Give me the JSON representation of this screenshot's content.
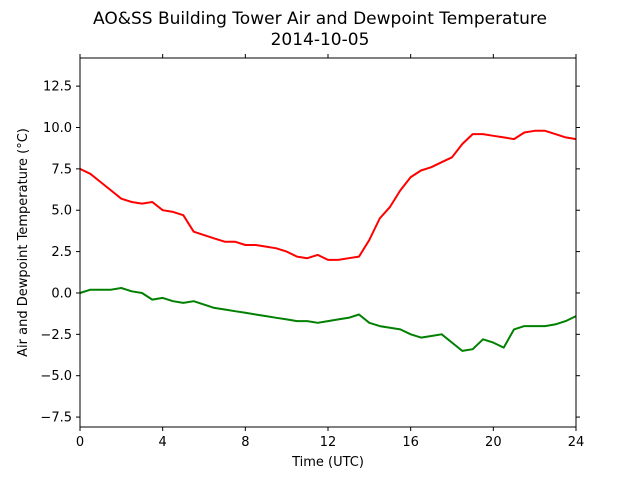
{
  "chart_data": {
    "type": "line",
    "title": "AO&SS Building Tower Air and Dewpoint Temperature",
    "subtitle": "2014-10-05",
    "xlabel": "Time (UTC)",
    "ylabel": "Air and Dewpoint Temperature (°C)",
    "xlim": [
      0,
      24
    ],
    "ylim": [
      -8.1,
      14.2
    ],
    "xticks": [
      0,
      4,
      8,
      12,
      16,
      20,
      24
    ],
    "xtick_labels": [
      "0",
      "4",
      "8",
      "12",
      "16",
      "20",
      "24"
    ],
    "yticks": [
      -7.5,
      -5.0,
      -2.5,
      0.0,
      2.5,
      5.0,
      7.5,
      10.0,
      12.5
    ],
    "ytick_labels": [
      "−7.5",
      "−5.0",
      "−2.5",
      "0.0",
      "2.5",
      "5.0",
      "7.5",
      "10.0",
      "12.5"
    ],
    "grid": false,
    "series": [
      {
        "color": "#ff0000",
        "x": [
          0,
          0.5,
          1,
          1.5,
          2,
          2.5,
          3,
          3.5,
          4,
          4.5,
          5,
          5.5,
          6,
          6.5,
          7,
          7.5,
          8,
          8.5,
          9,
          9.5,
          10,
          10.5,
          11,
          11.5,
          12,
          12.5,
          13,
          13.5,
          14,
          14.5,
          15,
          15.5,
          16,
          16.5,
          17,
          17.5,
          18,
          18.5,
          19,
          19.5,
          20,
          20.5,
          21,
          21.5,
          22,
          22.5,
          23,
          23.5,
          24
        ],
        "values": [
          7.5,
          7.2,
          6.7,
          6.2,
          5.7,
          5.5,
          5.4,
          5.5,
          5.0,
          4.9,
          4.7,
          3.7,
          3.5,
          3.3,
          3.1,
          3.1,
          2.9,
          2.9,
          2.8,
          2.7,
          2.5,
          2.2,
          2.1,
          2.3,
          2.0,
          2.0,
          2.1,
          2.2,
          3.2,
          4.5,
          5.2,
          6.2,
          7.0,
          7.4,
          7.6,
          7.9,
          8.2,
          9.0,
          9.6,
          9.6,
          9.5,
          9.4,
          9.3,
          9.7,
          9.8,
          9.8,
          9.6,
          9.4,
          9.3
        ]
      },
      {
        "color": "#008000",
        "x": [
          0,
          0.5,
          1,
          1.5,
          2,
          2.5,
          3,
          3.5,
          4,
          4.5,
          5,
          5.5,
          6,
          6.5,
          7,
          7.5,
          8,
          8.5,
          9,
          9.5,
          10,
          10.5,
          11,
          11.5,
          12,
          12.5,
          13,
          13.5,
          14,
          14.5,
          15,
          15.5,
          16,
          16.5,
          17,
          17.5,
          18,
          18.5,
          19,
          19.5,
          20,
          20.5,
          21,
          21.5,
          22,
          22.5,
          23,
          23.5,
          24
        ],
        "values": [
          0.0,
          0.2,
          0.2,
          0.2,
          0.3,
          0.1,
          0.0,
          -0.4,
          -0.3,
          -0.5,
          -0.6,
          -0.5,
          -0.7,
          -0.9,
          -1.0,
          -1.1,
          -1.2,
          -1.3,
          -1.4,
          -1.5,
          -1.6,
          -1.7,
          -1.7,
          -1.8,
          -1.7,
          -1.6,
          -1.5,
          -1.3,
          -1.8,
          -2.0,
          -2.1,
          -2.2,
          -2.5,
          -2.7,
          -2.6,
          -2.5,
          -3.0,
          -3.5,
          -3.4,
          -2.8,
          -3.0,
          -3.3,
          -2.2,
          -2.0,
          -2.0,
          -2.0,
          -1.9,
          -1.7,
          -1.4
        ]
      }
    ]
  }
}
